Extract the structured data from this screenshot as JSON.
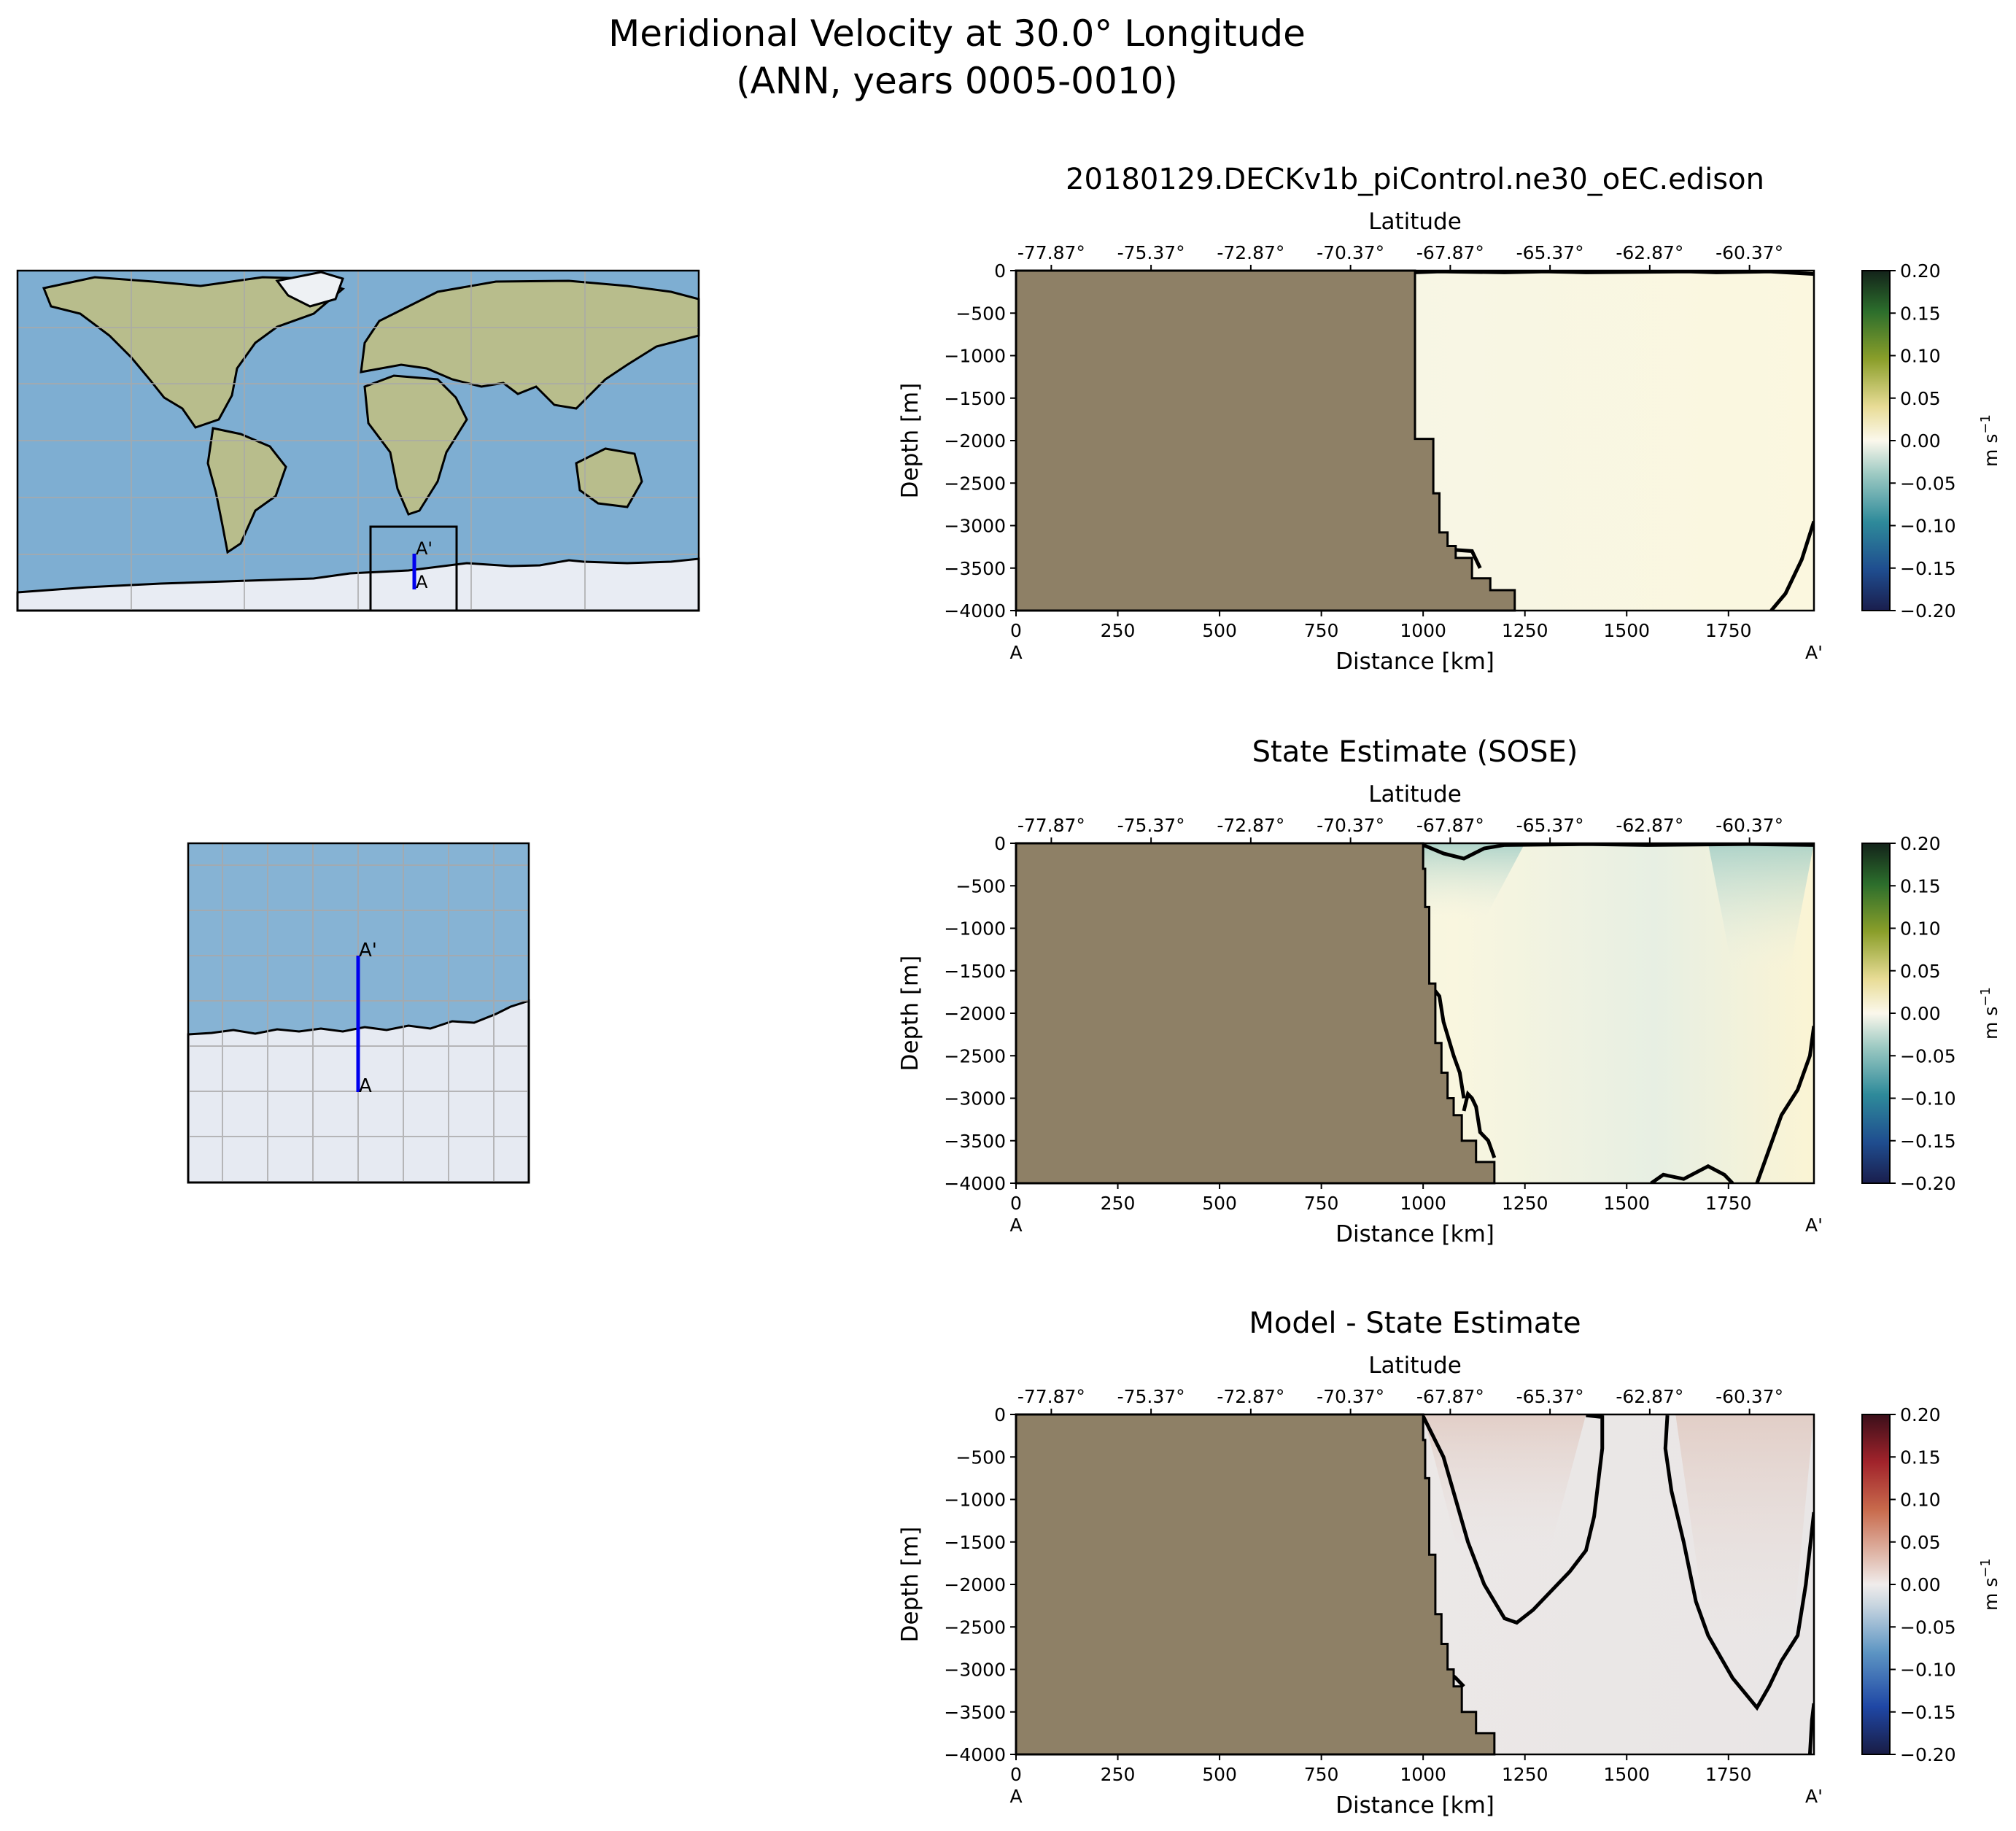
{
  "figure": {
    "title_line1": "Meridional Velocity at 30.0° Longitude",
    "title_line2": "(ANN, years 0005-0010)"
  },
  "map": {
    "label_start": "A",
    "label_end": "A'",
    "line_color": "#0000ee",
    "ocean_color": "#7eaed2",
    "land_color": "#b8bd8c",
    "ice_color": "#e8ecf3"
  },
  "chart_data": [
    {
      "type": "heatmap",
      "title": "20180129.DECKv1b_piControl.ne30_oEC.edison",
      "xlabel": "Distance [km]",
      "ylabel": "Depth [m]",
      "top_xlabel": "Latitude",
      "x_ticks": [
        0,
        250,
        500,
        750,
        1000,
        1250,
        1500,
        1750
      ],
      "y_ticks": [
        0,
        -500,
        -1000,
        -1500,
        -2000,
        -2500,
        -3000,
        -3500,
        -4000
      ],
      "lat_ticks": [
        "-77.87°",
        "-75.37°",
        "-72.87°",
        "-70.37°",
        "-67.87°",
        "-65.37°",
        "-62.87°",
        "-60.37°"
      ],
      "xlim": [
        0,
        1960
      ],
      "ylim": [
        -4000,
        0
      ],
      "section_start_label": "A",
      "section_end_label": "A'",
      "colorbar": {
        "label": "m s",
        "label_exp": "−1",
        "ticks": [
          "0.20",
          "0.15",
          "0.10",
          "0.05",
          "0.00",
          "−0.05",
          "−0.10",
          "−0.15",
          "−0.20"
        ],
        "vmin": -0.2,
        "vmax": 0.2,
        "colormap": "ocean-balance"
      },
      "land_color": "#8e8066",
      "land_boundary": [
        [
          980,
          0
        ],
        [
          980,
          -1980
        ],
        [
          1025,
          -1980
        ],
        [
          1025,
          -2620
        ],
        [
          1040,
          -2620
        ],
        [
          1040,
          -3080
        ],
        [
          1060,
          -3080
        ],
        [
          1060,
          -3240
        ],
        [
          1080,
          -3240
        ],
        [
          1080,
          -3380
        ],
        [
          1120,
          -3380
        ],
        [
          1120,
          -3620
        ],
        [
          1165,
          -3620
        ],
        [
          1165,
          -3760
        ],
        [
          1225,
          -3760
        ],
        [
          1225,
          -4000
        ]
      ]
    },
    {
      "type": "heatmap",
      "title": "State Estimate (SOSE)",
      "xlabel": "Distance [km]",
      "ylabel": "Depth [m]",
      "top_xlabel": "Latitude",
      "x_ticks": [
        0,
        250,
        500,
        750,
        1000,
        1250,
        1500,
        1750
      ],
      "y_ticks": [
        0,
        -500,
        -1000,
        -1500,
        -2000,
        -2500,
        -3000,
        -3500,
        -4000
      ],
      "lat_ticks": [
        "-77.87°",
        "-75.37°",
        "-72.87°",
        "-70.37°",
        "-67.87°",
        "-65.37°",
        "-62.87°",
        "-60.37°"
      ],
      "xlim": [
        0,
        1960
      ],
      "ylim": [
        -4000,
        0
      ],
      "section_start_label": "A",
      "section_end_label": "A'",
      "colorbar": {
        "label": "m s",
        "label_exp": "−1",
        "ticks": [
          "0.20",
          "0.15",
          "0.10",
          "0.05",
          "0.00",
          "−0.05",
          "−0.10",
          "−0.15",
          "−0.20"
        ],
        "vmin": -0.2,
        "vmax": 0.2,
        "colormap": "ocean-balance"
      },
      "land_color": "#8e8066",
      "land_boundary": [
        [
          1000,
          0
        ],
        [
          1000,
          -300
        ],
        [
          1005,
          -300
        ],
        [
          1005,
          -750
        ],
        [
          1015,
          -750
        ],
        [
          1015,
          -1650
        ],
        [
          1030,
          -1650
        ],
        [
          1030,
          -2350
        ],
        [
          1045,
          -2350
        ],
        [
          1045,
          -2700
        ],
        [
          1060,
          -2700
        ],
        [
          1060,
          -3000
        ],
        [
          1075,
          -3000
        ],
        [
          1075,
          -3200
        ],
        [
          1095,
          -3200
        ],
        [
          1095,
          -3500
        ],
        [
          1130,
          -3500
        ],
        [
          1130,
          -3750
        ],
        [
          1175,
          -3750
        ],
        [
          1175,
          -4000
        ]
      ]
    },
    {
      "type": "heatmap",
      "title": "Model - State Estimate",
      "xlabel": "Distance [km]",
      "ylabel": "Depth [m]",
      "top_xlabel": "Latitude",
      "x_ticks": [
        0,
        250,
        500,
        750,
        1000,
        1250,
        1500,
        1750
      ],
      "y_ticks": [
        0,
        -500,
        -1000,
        -1500,
        -2000,
        -2500,
        -3000,
        -3500,
        -4000
      ],
      "lat_ticks": [
        "-77.87°",
        "-75.37°",
        "-72.87°",
        "-70.37°",
        "-67.87°",
        "-65.37°",
        "-62.87°",
        "-60.37°"
      ],
      "xlim": [
        0,
        1960
      ],
      "ylim": [
        -4000,
        0
      ],
      "section_start_label": "A",
      "section_end_label": "A'",
      "colorbar": {
        "label": "m s",
        "label_exp": "−1",
        "ticks": [
          "0.20",
          "0.15",
          "0.10",
          "0.05",
          "0.00",
          "−0.05",
          "−0.10",
          "−0.15",
          "−0.20"
        ],
        "vmin": -0.2,
        "vmax": 0.2,
        "colormap": "balance"
      },
      "land_color": "#8e8066",
      "land_boundary": [
        [
          1000,
          0
        ],
        [
          1000,
          -300
        ],
        [
          1005,
          -300
        ],
        [
          1005,
          -750
        ],
        [
          1015,
          -750
        ],
        [
          1015,
          -1650
        ],
        [
          1030,
          -1650
        ],
        [
          1030,
          -2350
        ],
        [
          1045,
          -2350
        ],
        [
          1045,
          -2700
        ],
        [
          1060,
          -2700
        ],
        [
          1060,
          -3000
        ],
        [
          1075,
          -3000
        ],
        [
          1075,
          -3200
        ],
        [
          1095,
          -3200
        ],
        [
          1095,
          -3500
        ],
        [
          1130,
          -3500
        ],
        [
          1130,
          -3750
        ],
        [
          1175,
          -3750
        ],
        [
          1175,
          -4000
        ]
      ]
    }
  ]
}
